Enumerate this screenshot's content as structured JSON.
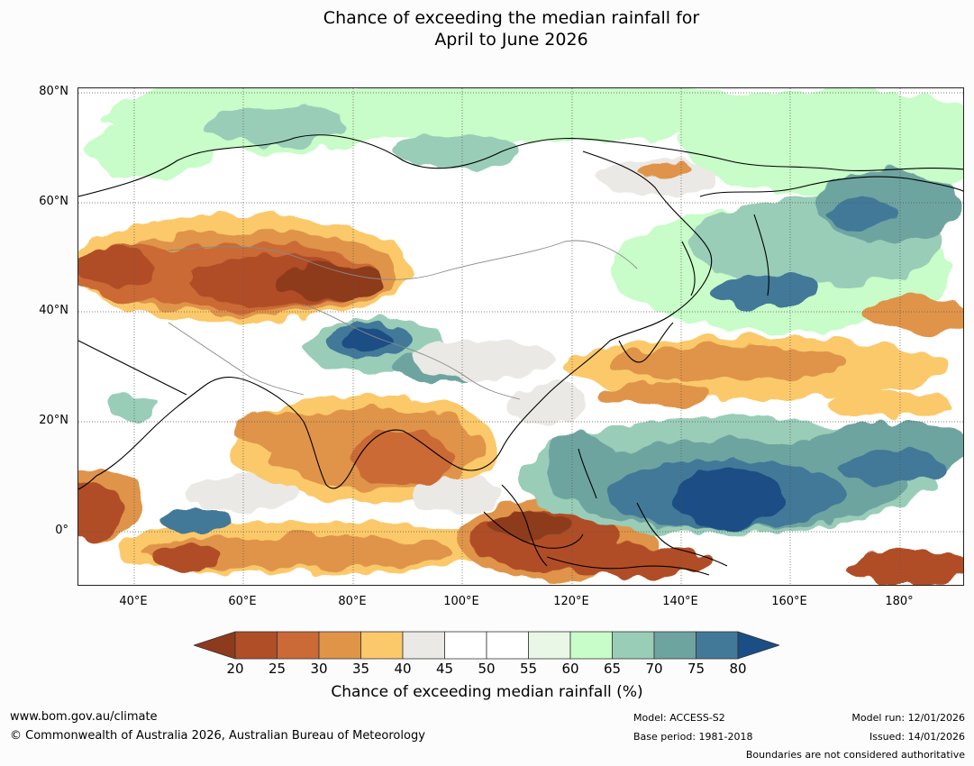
{
  "title": {
    "line1": "Chance of exceeding the median rainfall for",
    "line2": "April to June 2026"
  },
  "map": {
    "region": "Asia and western Pacific",
    "latitude_labels": [
      "80°N",
      "60°N",
      "40°N",
      "20°N",
      "0°"
    ],
    "longitude_labels": [
      "40°E",
      "60°E",
      "80°E",
      "100°E",
      "120°E",
      "140°E",
      "160°E",
      "180°"
    ],
    "features": [
      {
        "name": "dry-central-asia",
        "category": "20-35%"
      },
      {
        "name": "dry-india",
        "category": "25-40%"
      },
      {
        "name": "dry-borneo-java",
        "category": "20-30%"
      },
      {
        "name": "dry-east-africa",
        "category": "20-30%"
      },
      {
        "name": "dry-north-pacific-band",
        "category": "25-40%"
      },
      {
        "name": "wet-tibetan-plateau",
        "category": "75-80%+"
      },
      {
        "name": "wet-west-pacific",
        "category": "70-80%+"
      },
      {
        "name": "wet-siberia-northeast",
        "category": "60-75%"
      }
    ]
  },
  "legend": {
    "title": "Chance of exceeding median rainfall (%)",
    "ticks": [
      "20",
      "25",
      "30",
      "35",
      "40",
      "45",
      "50",
      "55",
      "60",
      "65",
      "70",
      "75",
      "80"
    ],
    "colors": [
      "#8e3a1c",
      "#b04e27",
      "#cb6a36",
      "#df9448",
      "#fbc96a",
      "#ebe9e5",
      "#ffffff",
      "#ffffff",
      "#e8f7e6",
      "#c8fcc8",
      "#99cdb8",
      "#6ea4a0",
      "#437998",
      "#1a4e84"
    ]
  },
  "footer": {
    "website": "www.bom.gov.au/climate",
    "copyright": "© Commonwealth of Australia 2026, Australian Bureau of Meteorology",
    "model": "Model: ACCESS-S2",
    "base_period": "Base period: 1981-2018",
    "model_run": "Model run: 12/01/2026",
    "issued": "Issued: 14/01/2026",
    "disclaimer": "Boundaries are not considered authoritative"
  }
}
